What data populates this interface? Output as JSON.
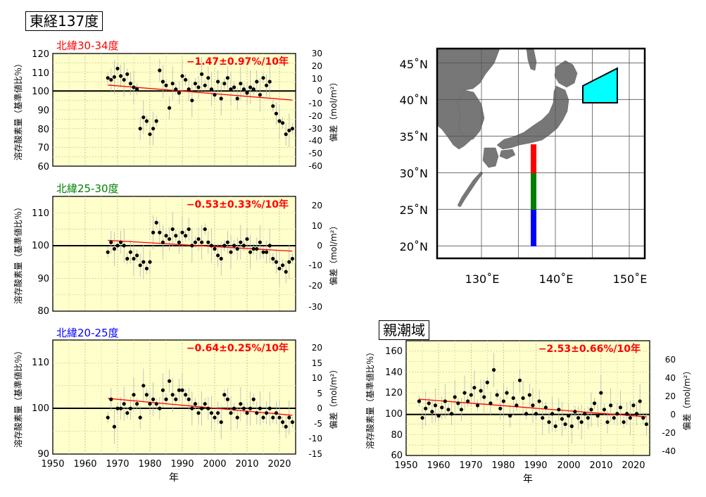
{
  "title": "東経137度",
  "panels": [
    {
      "key": "p1",
      "label": "北緯30-34度",
      "label_color": "#ff0000",
      "trend_text": "−1.47±0.97%/10年",
      "ylabel_left": "溶存酸素量（基準値比％）",
      "ylabel_right": "偏差（mol/m²）",
      "left_ticks": [
        "60",
        "70",
        "80",
        "90",
        "100",
        "110",
        "120"
      ],
      "right_ticks": [
        "-60",
        "-50",
        "-40",
        "-30",
        "-20",
        "-10",
        "0",
        "10",
        "20",
        "30"
      ]
    },
    {
      "key": "p2",
      "label": "北緯25-30度",
      "label_color": "#008000",
      "trend_text": "−0.53±0.33%/10年",
      "ylabel_left": "溶存酸素量（基準値比％）",
      "ylabel_right": "偏差（mol/m²）",
      "left_ticks": [
        "80",
        "90",
        "100",
        "110"
      ],
      "right_ticks": [
        "-30",
        "-20",
        "-10",
        "0",
        "10",
        "20"
      ]
    },
    {
      "key": "p3",
      "label": "北緯20-25度",
      "label_color": "#0000ff",
      "trend_text": "−0.64±0.25%/10年",
      "ylabel_left": "溶存酸素量（基準値比％）",
      "ylabel_right": "偏差（mol/m²）",
      "left_ticks": [
        "90",
        "100",
        "110"
      ],
      "right_ticks": [
        "-15",
        "-10",
        "-5",
        "0",
        "5",
        "10",
        "15",
        "20"
      ],
      "xlabel": "年"
    },
    {
      "key": "p4",
      "label": "親潮域",
      "trend_text": "−2.53±0.66%/10年",
      "ylabel_left": "溶存酸素量（基準値比％）",
      "ylabel_right": "偏差（mol/m²）",
      "left_ticks": [
        "60",
        "80",
        "100",
        "120",
        "140",
        "160"
      ],
      "right_ticks": [
        "-40",
        "-20",
        "0",
        "20",
        "40",
        "60"
      ],
      "xlabel": "年"
    }
  ],
  "x_ticks": [
    "1950",
    "1960",
    "1970",
    "1980",
    "1990",
    "2000",
    "2010",
    "2020"
  ],
  "map": {
    "lat_labels": [
      "20˚N",
      "25˚N",
      "30˚N",
      "35˚N",
      "40˚N",
      "45˚N"
    ],
    "lon_labels": [
      "130˚E",
      "140˚E",
      "150˚E"
    ],
    "section_colors": [
      "#ff0000",
      "#008000",
      "#0000ff"
    ],
    "oyashio_color": "#00ffff"
  },
  "chart_data": [
    {
      "type": "scatter",
      "name": "北緯30-34度",
      "x_range": [
        1950,
        2025
      ],
      "ylim": [
        60,
        120
      ],
      "y2lim": [
        -60,
        30
      ],
      "trend": {
        "x": [
          1967,
          2024
        ],
        "y": [
          103.2,
          95.2
        ]
      },
      "points": [
        [
          1967,
          107
        ],
        [
          1968,
          106
        ],
        [
          1969,
          107.5
        ],
        [
          1970,
          112
        ],
        [
          1971,
          108
        ],
        [
          1972,
          106
        ],
        [
          1973,
          109
        ],
        [
          1974,
          104
        ],
        [
          1975,
          102
        ],
        [
          1976,
          101
        ],
        [
          1977,
          80
        ],
        [
          1978,
          86
        ],
        [
          1979,
          84
        ],
        [
          1980,
          77
        ],
        [
          1981,
          80
        ],
        [
          1982,
          84
        ],
        [
          1983,
          111
        ],
        [
          1984,
          105
        ],
        [
          1985,
          103
        ],
        [
          1986,
          91
        ],
        [
          1987,
          104
        ],
        [
          1988,
          101
        ],
        [
          1989,
          99
        ],
        [
          1990,
          108
        ],
        [
          1991,
          106
        ],
        [
          1992,
          101
        ],
        [
          1993,
          95
        ],
        [
          1994,
          104
        ],
        [
          1995,
          102
        ],
        [
          1996,
          109
        ],
        [
          1997,
          103
        ],
        [
          1998,
          107
        ],
        [
          1999,
          101
        ],
        [
          2000,
          98
        ],
        [
          2001,
          105
        ],
        [
          2002,
          96
        ],
        [
          2003,
          104
        ],
        [
          2004,
          107
        ],
        [
          2005,
          101
        ],
        [
          2006,
          102
        ],
        [
          2007,
          96
        ],
        [
          2008,
          104
        ],
        [
          2009,
          101
        ],
        [
          2010,
          99
        ],
        [
          2011,
          102
        ],
        [
          2012,
          101
        ],
        [
          2013,
          105
        ],
        [
          2014,
          98
        ],
        [
          2015,
          107
        ],
        [
          2016,
          103
        ],
        [
          2017,
          105
        ],
        [
          2018,
          92
        ],
        [
          2019,
          88
        ],
        [
          2020,
          84
        ],
        [
          2021,
          83
        ],
        [
          2022,
          77
        ],
        [
          2023,
          79
        ],
        [
          2024,
          80
        ]
      ]
    },
    {
      "type": "scatter",
      "name": "北緯25-30度",
      "x_range": [
        1950,
        2025
      ],
      "ylim": [
        80,
        115
      ],
      "y2lim": [
        -30,
        20
      ],
      "trend": {
        "x": [
          1967,
          2024
        ],
        "y": [
          101.6,
          98.3
        ]
      },
      "points": [
        [
          1967,
          98
        ],
        [
          1968,
          101
        ],
        [
          1969,
          99
        ],
        [
          1970,
          100
        ],
        [
          1971,
          101
        ],
        [
          1972,
          100
        ],
        [
          1973,
          96
        ],
        [
          1974,
          98
        ],
        [
          1975,
          96
        ],
        [
          1976,
          97
        ],
        [
          1977,
          94
        ],
        [
          1978,
          95
        ],
        [
          1979,
          93
        ],
        [
          1980,
          95
        ],
        [
          1981,
          104
        ],
        [
          1982,
          107
        ],
        [
          1983,
          104
        ],
        [
          1984,
          101
        ],
        [
          1985,
          103
        ],
        [
          1986,
          102
        ],
        [
          1987,
          105
        ],
        [
          1988,
          103
        ],
        [
          1989,
          101
        ],
        [
          1990,
          104
        ],
        [
          1991,
          103
        ],
        [
          1992,
          105
        ],
        [
          1993,
          100
        ],
        [
          1994,
          101
        ],
        [
          1995,
          102
        ],
        [
          1996,
          101
        ],
        [
          1997,
          105
        ],
        [
          1998,
          101
        ],
        [
          1999,
          100
        ],
        [
          2000,
          99
        ],
        [
          2001,
          97
        ],
        [
          2002,
          96
        ],
        [
          2003,
          100
        ],
        [
          2004,
          101
        ],
        [
          2005,
          98
        ],
        [
          2006,
          100
        ],
        [
          2007,
          99
        ],
        [
          2008,
          101
        ],
        [
          2009,
          100
        ],
        [
          2010,
          102
        ],
        [
          2011,
          98
        ],
        [
          2012,
          99
        ],
        [
          2013,
          99
        ],
        [
          2014,
          101
        ],
        [
          2015,
          98
        ],
        [
          2016,
          98
        ],
        [
          2017,
          100
        ],
        [
          2018,
          96
        ],
        [
          2019,
          95
        ],
        [
          2020,
          93
        ],
        [
          2021,
          94
        ],
        [
          2022,
          92
        ],
        [
          2023,
          95
        ],
        [
          2024,
          96
        ]
      ]
    },
    {
      "type": "scatter",
      "name": "北緯20-25度",
      "x_range": [
        1950,
        2025
      ],
      "ylim": [
        90,
        115
      ],
      "y2lim": [
        -15,
        20
      ],
      "trend": {
        "x": [
          1967,
          2024
        ],
        "y": [
          102.2,
          98.5
        ]
      },
      "points": [
        [
          1967,
          98
        ],
        [
          1968,
          102
        ],
        [
          1969,
          96
        ],
        [
          1970,
          100
        ],
        [
          1971,
          100
        ],
        [
          1972,
          101
        ],
        [
          1973,
          99
        ],
        [
          1974,
          100
        ],
        [
          1975,
          103
        ],
        [
          1976,
          101
        ],
        [
          1977,
          98
        ],
        [
          1978,
          105
        ],
        [
          1979,
          103
        ],
        [
          1980,
          101
        ],
        [
          1981,
          102
        ],
        [
          1982,
          101
        ],
        [
          1983,
          100
        ],
        [
          1984,
          104
        ],
        [
          1985,
          102
        ],
        [
          1986,
          106
        ],
        [
          1987,
          103
        ],
        [
          1988,
          102
        ],
        [
          1989,
          104
        ],
        [
          1990,
          104
        ],
        [
          1991,
          103
        ],
        [
          1992,
          102
        ],
        [
          1993,
          100
        ],
        [
          1994,
          101
        ],
        [
          1995,
          99
        ],
        [
          1996,
          100
        ],
        [
          1997,
          101
        ],
        [
          1998,
          100
        ],
        [
          1999,
          99
        ],
        [
          2000,
          98
        ],
        [
          2001,
          99
        ],
        [
          2002,
          97
        ],
        [
          2003,
          103
        ],
        [
          2004,
          102
        ],
        [
          2005,
          99
        ],
        [
          2006,
          100
        ],
        [
          2007,
          98
        ],
        [
          2008,
          101
        ],
        [
          2009,
          100
        ],
        [
          2010,
          99
        ],
        [
          2011,
          100
        ],
        [
          2012,
          102
        ],
        [
          2013,
          99
        ],
        [
          2014,
          100
        ],
        [
          2015,
          98
        ],
        [
          2016,
          99
        ],
        [
          2017,
          100
        ],
        [
          2018,
          98
        ],
        [
          2019,
          99
        ],
        [
          2020,
          98
        ],
        [
          2021,
          97
        ],
        [
          2022,
          96
        ],
        [
          2023,
          98
        ],
        [
          2024,
          97
        ]
      ]
    },
    {
      "type": "scatter",
      "name": "親潮域",
      "x_range": [
        1950,
        2025
      ],
      "ylim": [
        60,
        170
      ],
      "y2lim": [
        -40,
        60
      ],
      "trend": {
        "x": [
          1954,
          2024
        ],
        "y": [
          114,
          97
        ]
      },
      "points": [
        [
          1954,
          112
        ],
        [
          1955,
          96
        ],
        [
          1956,
          105
        ],
        [
          1957,
          110
        ],
        [
          1958,
          102
        ],
        [
          1959,
          108
        ],
        [
          1960,
          98
        ],
        [
          1961,
          106
        ],
        [
          1962,
          112
        ],
        [
          1963,
          104
        ],
        [
          1964,
          100
        ],
        [
          1965,
          116
        ],
        [
          1966,
          110
        ],
        [
          1967,
          104
        ],
        [
          1968,
          120
        ],
        [
          1969,
          112
        ],
        [
          1970,
          118
        ],
        [
          1971,
          125
        ],
        [
          1972,
          108
        ],
        [
          1973,
          122
        ],
        [
          1974,
          116
        ],
        [
          1975,
          130
        ],
        [
          1976,
          110
        ],
        [
          1977,
          142
        ],
        [
          1978,
          118
        ],
        [
          1979,
          105
        ],
        [
          1980,
          112
        ],
        [
          1981,
          120
        ],
        [
          1982,
          98
        ],
        [
          1983,
          115
        ],
        [
          1984,
          108
        ],
        [
          1985,
          132
        ],
        [
          1986,
          115
        ],
        [
          1987,
          100
        ],
        [
          1988,
          118
        ],
        [
          1989,
          108
        ],
        [
          1990,
          100
        ],
        [
          1991,
          112
        ],
        [
          1992,
          96
        ],
        [
          1993,
          106
        ],
        [
          1994,
          92
        ],
        [
          1995,
          100
        ],
        [
          1996,
          88
        ],
        [
          1997,
          104
        ],
        [
          1998,
          95
        ],
        [
          1999,
          90
        ],
        [
          2000,
          98
        ],
        [
          2001,
          88
        ],
        [
          2002,
          102
        ],
        [
          2003,
          96
        ],
        [
          2004,
          92
        ],
        [
          2005,
          100
        ],
        [
          2006,
          96
        ],
        [
          2007,
          104
        ],
        [
          2008,
          110
        ],
        [
          2009,
          98
        ],
        [
          2010,
          120
        ],
        [
          2011,
          104
        ],
        [
          2012,
          92
        ],
        [
          2013,
          108
        ],
        [
          2014,
          96
        ],
        [
          2015,
          100
        ],
        [
          2016,
          106
        ],
        [
          2017,
          92
        ],
        [
          2018,
          100
        ],
        [
          2019,
          96
        ],
        [
          2020,
          108
        ],
        [
          2021,
          100
        ],
        [
          2022,
          112
        ],
        [
          2023,
          96
        ],
        [
          2024,
          90
        ]
      ]
    }
  ]
}
